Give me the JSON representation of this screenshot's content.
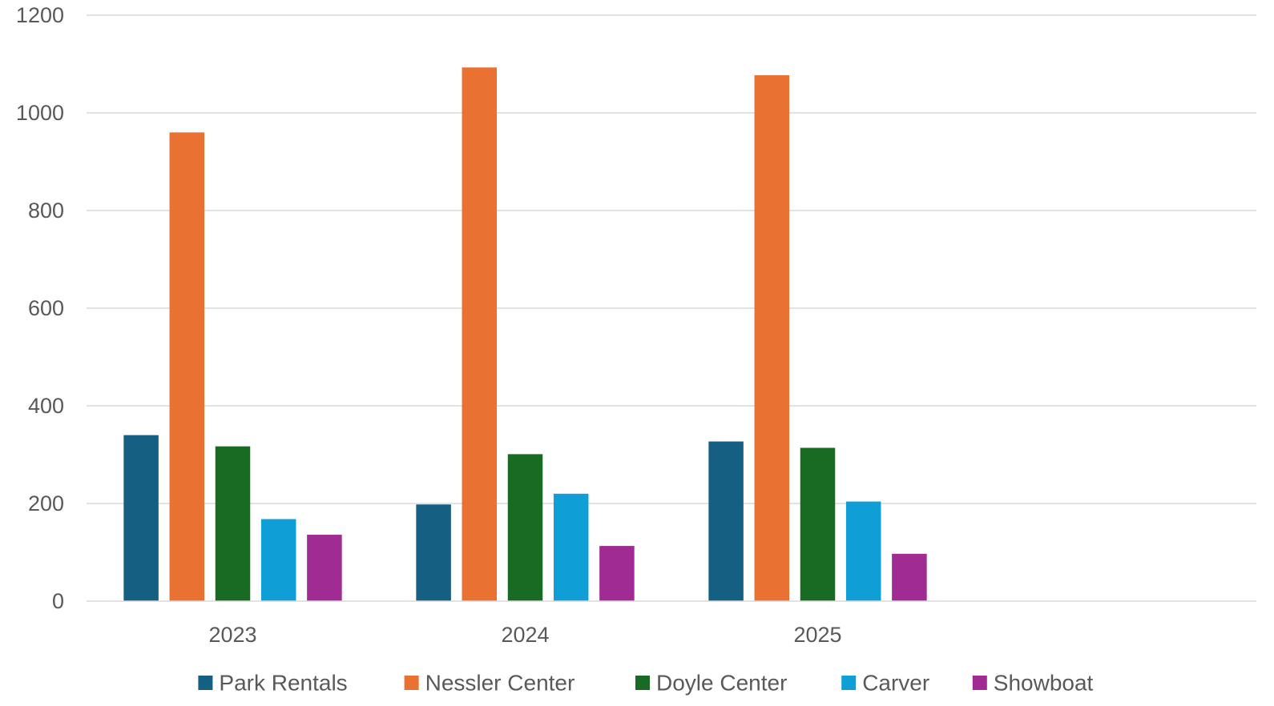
{
  "chart_data": {
    "type": "bar",
    "title": "",
    "xlabel": "",
    "ylabel": "",
    "categories": [
      "2023",
      "2024",
      "2025",
      ""
    ],
    "ylim": [
      0,
      1200
    ],
    "yticks": [
      0,
      200,
      400,
      600,
      800,
      1000,
      1200
    ],
    "grid": true,
    "legend": "bottom",
    "series": [
      {
        "name": "Park Rentals",
        "color": "#156082",
        "values": [
          340,
          198,
          327,
          null
        ]
      },
      {
        "name": "Nessler Center",
        "color": "#E97132",
        "values": [
          960,
          1093,
          1077,
          null
        ]
      },
      {
        "name": "Doyle Center",
        "color": "#196B24",
        "values": [
          317,
          301,
          314,
          null
        ]
      },
      {
        "name": "Carver",
        "color": "#0F9ED5",
        "values": [
          168,
          220,
          204,
          null
        ]
      },
      {
        "name": "Showboat",
        "color": "#A02B93",
        "values": [
          136,
          113,
          97,
          null
        ]
      }
    ]
  }
}
